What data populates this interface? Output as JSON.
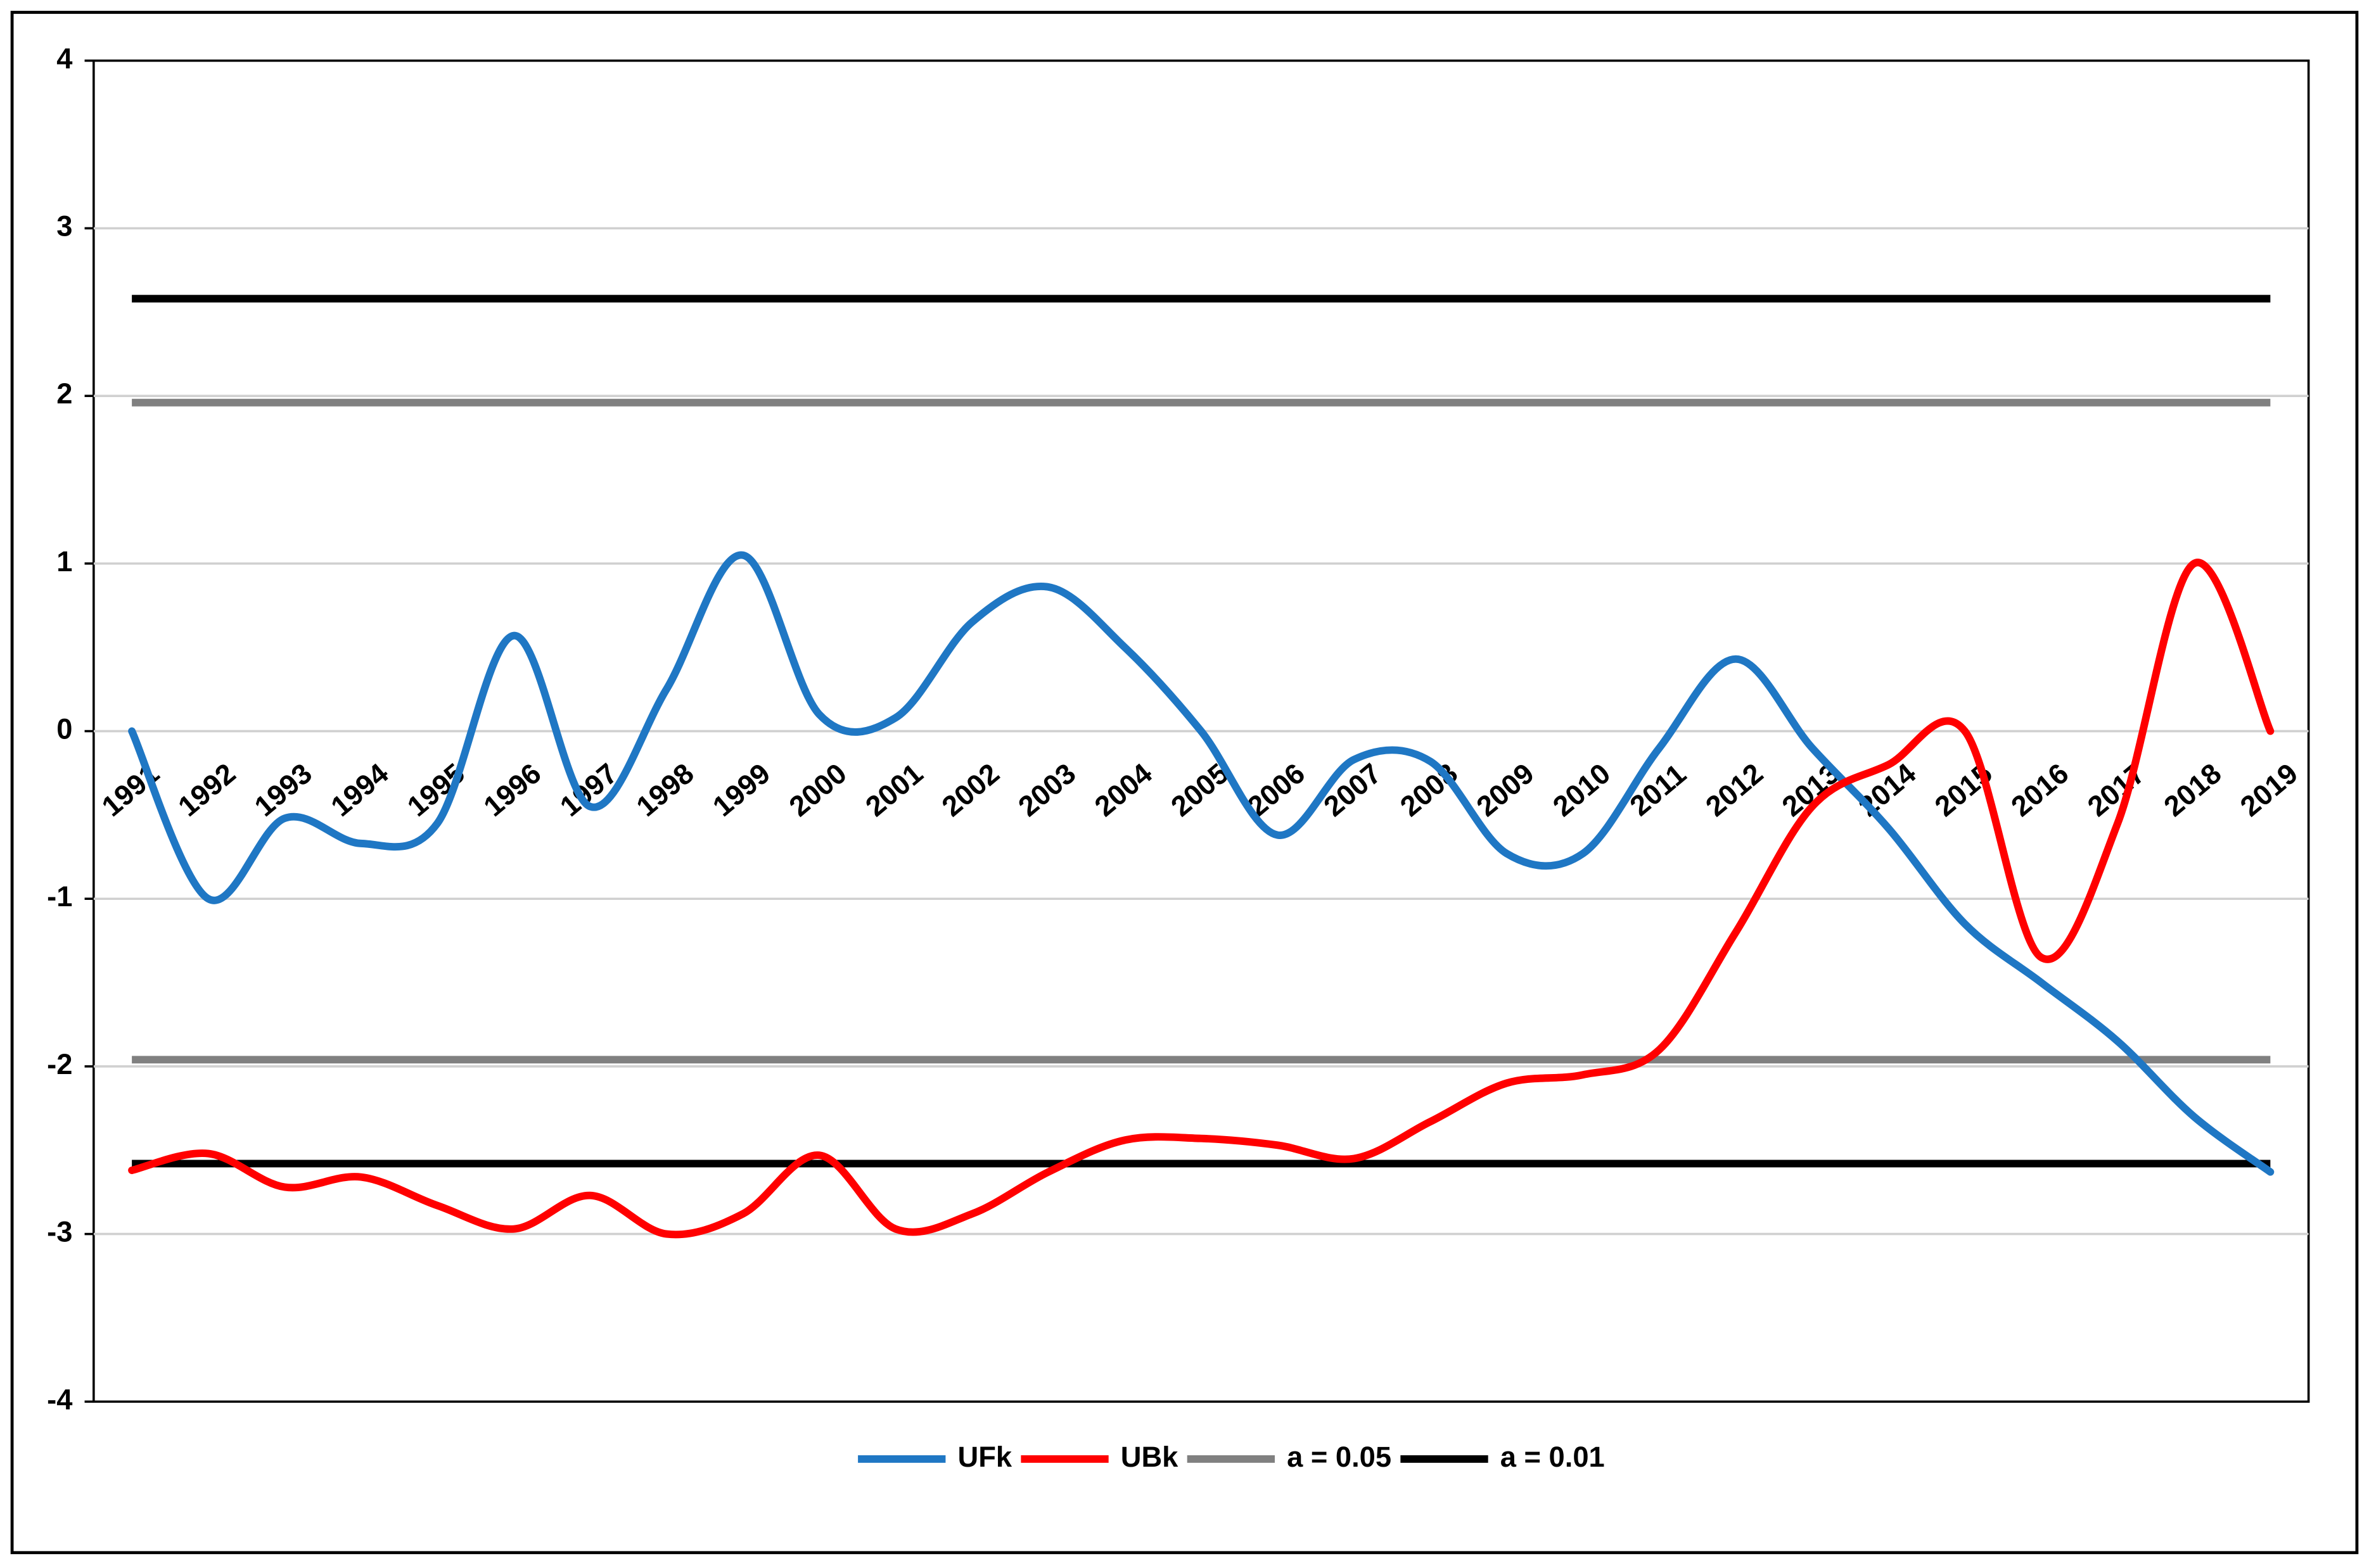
{
  "chart_data": {
    "type": "line",
    "categories": [
      "1991",
      "1992",
      "1993",
      "1994",
      "1995",
      "1996",
      "1997",
      "1998",
      "1999",
      "2000",
      "2001",
      "2002",
      "2003",
      "2004",
      "2005",
      "2006",
      "2007",
      "2008",
      "2009",
      "2010",
      "2011",
      "2012",
      "2013",
      "2014",
      "2015",
      "2016",
      "2017",
      "2018",
      "2019"
    ],
    "series": [
      {
        "name": "UFk",
        "color": "#1f77c4",
        "values": [
          0,
          -1.0,
          -0.52,
          -0.67,
          -0.55,
          0.57,
          -0.45,
          0.25,
          1.05,
          0.1,
          0.08,
          0.65,
          0.86,
          0.5,
          0.0,
          -0.62,
          -0.17,
          -0.18,
          -0.73,
          -0.73,
          -0.1,
          0.43,
          -0.1,
          -0.58,
          -1.15,
          -1.5,
          -1.85,
          -2.3,
          -2.63
        ]
      },
      {
        "name": "UBk",
        "color": "#ff0000",
        "values": [
          -2.62,
          -2.52,
          -2.72,
          -2.66,
          -2.83,
          -2.97,
          -2.77,
          -3.0,
          -2.88,
          -2.53,
          -2.97,
          -2.88,
          -2.63,
          -2.44,
          -2.43,
          -2.47,
          -2.55,
          -2.33,
          -2.1,
          -2.05,
          -1.9,
          -1.2,
          -0.45,
          -0.2,
          0.0,
          -1.35,
          -0.55,
          1.0,
          0.0
        ]
      }
    ],
    "hlines": [
      {
        "name": "a = 0.05",
        "color": "#808080",
        "values": [
          1.96,
          -1.96
        ]
      },
      {
        "name": "a = 0.01",
        "color": "#000000",
        "values": [
          2.58,
          -2.58
        ]
      }
    ],
    "ylim": [
      -4,
      4
    ],
    "yticks": [
      -4,
      -3,
      -2,
      -1,
      0,
      1,
      2,
      3,
      4
    ],
    "grid": true
  }
}
